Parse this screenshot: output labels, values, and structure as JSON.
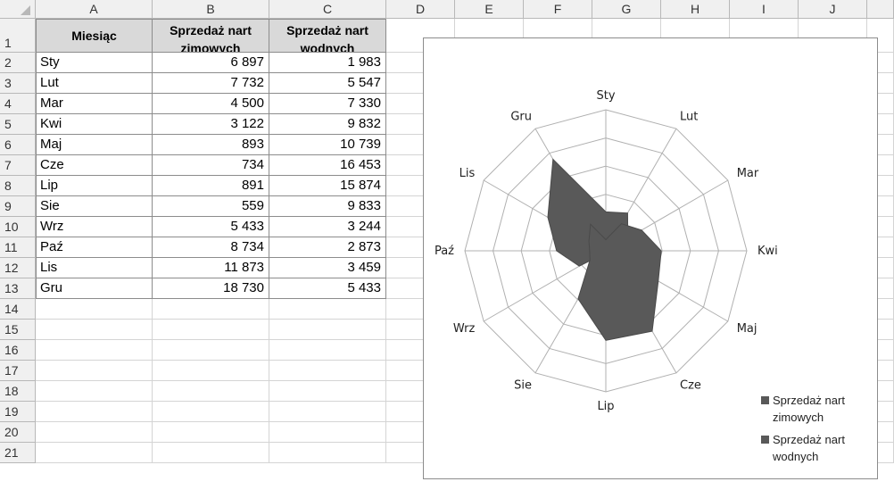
{
  "columns": [
    "A",
    "B",
    "C",
    "D",
    "E",
    "F",
    "G",
    "H",
    "I",
    "J"
  ],
  "row_numbers": [
    "1",
    "2",
    "3",
    "4",
    "5",
    "6",
    "7",
    "8",
    "9",
    "10",
    "11",
    "12",
    "13",
    "14",
    "15",
    "16",
    "17",
    "18",
    "19",
    "20",
    "21"
  ],
  "table": {
    "headers": [
      "Miesiąc",
      "Sprzedaż nart zimowych",
      "Sprzedaż nart wodnych"
    ],
    "rows": [
      [
        "Sty",
        "6 897",
        "1 983"
      ],
      [
        "Lut",
        "7 732",
        "5 547"
      ],
      [
        "Mar",
        "4 500",
        "7 330"
      ],
      [
        "Kwi",
        "3 122",
        "9 832"
      ],
      [
        "Maj",
        "893",
        "10 739"
      ],
      [
        "Cze",
        "734",
        "16 453"
      ],
      [
        "Lip",
        "891",
        "15 874"
      ],
      [
        "Sie",
        "559",
        "9 833"
      ],
      [
        "Wrz",
        "5 433",
        "3 244"
      ],
      [
        "Paź",
        "8 734",
        "2 873"
      ],
      [
        "Lis",
        "11 873",
        "3 459"
      ],
      [
        "Gru",
        "18 730",
        "5 433"
      ]
    ]
  },
  "colors": {
    "series_fill": "#595959",
    "grid": "#b0b0b0",
    "header_fill": "#d9d9d9"
  },
  "chart_data": {
    "type": "radar",
    "categories": [
      "Sty",
      "Lut",
      "Mar",
      "Kwi",
      "Maj",
      "Cze",
      "Lip",
      "Sie",
      "Wrz",
      "Paź",
      "Lis",
      "Gru"
    ],
    "series": [
      {
        "name": "Sprzedaż nart zimowych",
        "values": [
          6897,
          7732,
          4500,
          3122,
          893,
          734,
          891,
          559,
          5433,
          8734,
          11873,
          18730
        ]
      },
      {
        "name": "Sprzedaż nart wodnych",
        "values": [
          1983,
          5547,
          7330,
          9832,
          10739,
          16453,
          15874,
          9833,
          3244,
          2873,
          3459,
          5433
        ]
      }
    ],
    "rlim": [
      0,
      25000
    ],
    "grid": true,
    "filled": true,
    "legend": "right-bottom"
  }
}
